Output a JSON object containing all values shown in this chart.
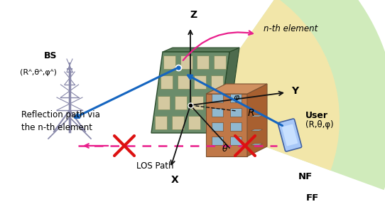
{
  "bg_color": "#ffffff",
  "ris_color": "#6b8c6b",
  "ris_cell_color": "#d4c9a0",
  "side_color": "#4d6b4d",
  "top_color": "#5a7a5a",
  "grid_edge_color": "#7a8a5a",
  "z_axis_label": "Z",
  "x_axis_label": "X",
  "y_axis_label": "Y",
  "theta_label": "θ",
  "phi_label": "φ",
  "r_label": "R",
  "nth_element_label": "n-th element",
  "reflection_path_label": "Reflection path via\nthe n-th element",
  "bs_label": "BS",
  "bs_coords_label": "(Rᴬ,θᴬ,φᴬ)",
  "user_label": "User",
  "user_coords_label": "(R,θ,φ)",
  "los_label": "LOS Path",
  "nf_label": "NF",
  "ff_label": "FF",
  "fan_near_color": "#f5e6a8",
  "fan_far_color": "#c8e8b0",
  "arrow_blue": "#1565c0",
  "arrow_pink": "#e91e8c",
  "arrow_red": "#dd1111",
  "dashed_pink": "#e91e8c",
  "axis_color": "#111111",
  "tower_color": "#8888aa",
  "bldg_front": "#c07848",
  "bldg_side": "#a86030",
  "bldg_top": "#d09060",
  "bldg_win": "#90b8d0",
  "phone_color": "#90b8e8",
  "font_size": 9
}
